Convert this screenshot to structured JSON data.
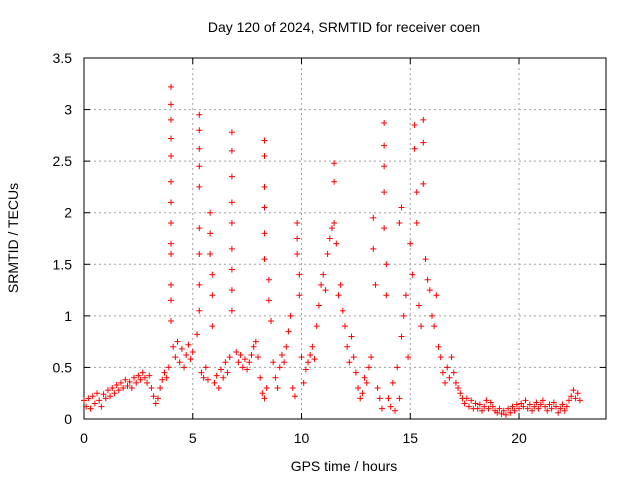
{
  "chart_data": {
    "type": "scatter",
    "title": "Day 120 of 2024, SRMTID for receiver coen",
    "xlabel": "GPS time / hours",
    "ylabel": "SRMTID / TECUs",
    "xlim": [
      0,
      24
    ],
    "ylim": [
      0,
      3.5
    ],
    "xticks": [
      "0",
      "5",
      "10",
      "15",
      "20"
    ],
    "xtick_values": [
      0,
      5,
      10,
      15,
      20
    ],
    "yticks": [
      "0",
      "0.5",
      "1",
      "1.5",
      "2",
      "2.5",
      "3",
      "3.5"
    ],
    "ytick_values": [
      0,
      0.5,
      1,
      1.5,
      2,
      2.5,
      3,
      3.5
    ],
    "grid": true,
    "marker": "plus",
    "series": [
      {
        "name": "SRMTID",
        "color": "#ff0000",
        "points": [
          [
            0.0,
            0.18
          ],
          [
            0.1,
            0.12
          ],
          [
            0.2,
            0.2
          ],
          [
            0.3,
            0.1
          ],
          [
            0.4,
            0.22
          ],
          [
            0.5,
            0.15
          ],
          [
            0.6,
            0.25
          ],
          [
            0.7,
            0.18
          ],
          [
            0.8,
            0.12
          ],
          [
            0.9,
            0.24
          ],
          [
            1.0,
            0.2
          ],
          [
            1.1,
            0.28
          ],
          [
            1.2,
            0.22
          ],
          [
            1.3,
            0.3
          ],
          [
            1.4,
            0.25
          ],
          [
            1.5,
            0.33
          ],
          [
            1.6,
            0.28
          ],
          [
            1.7,
            0.35
          ],
          [
            1.8,
            0.3
          ],
          [
            1.9,
            0.38
          ],
          [
            2.0,
            0.32
          ],
          [
            2.1,
            0.36
          ],
          [
            2.2,
            0.3
          ],
          [
            2.3,
            0.4
          ],
          [
            2.4,
            0.35
          ],
          [
            2.5,
            0.42
          ],
          [
            2.6,
            0.38
          ],
          [
            2.7,
            0.45
          ],
          [
            2.8,
            0.4
          ],
          [
            2.9,
            0.35
          ],
          [
            3.0,
            0.42
          ],
          [
            3.1,
            0.3
          ],
          [
            3.2,
            0.22
          ],
          [
            3.3,
            0.15
          ],
          [
            3.4,
            0.2
          ],
          [
            3.5,
            0.3
          ],
          [
            3.6,
            0.38
          ],
          [
            3.7,
            0.45
          ],
          [
            3.8,
            0.4
          ],
          [
            3.9,
            0.5
          ],
          [
            4.0,
            3.22
          ],
          [
            4.0,
            3.05
          ],
          [
            4.0,
            2.9
          ],
          [
            4.0,
            2.72
          ],
          [
            4.0,
            2.55
          ],
          [
            4.0,
            2.3
          ],
          [
            4.0,
            2.1
          ],
          [
            4.0,
            1.9
          ],
          [
            4.0,
            1.7
          ],
          [
            4.0,
            1.6
          ],
          [
            4.0,
            1.3
          ],
          [
            4.0,
            1.15
          ],
          [
            4.0,
            0.95
          ],
          [
            4.1,
            0.7
          ],
          [
            4.2,
            0.6
          ],
          [
            4.3,
            0.75
          ],
          [
            4.4,
            0.55
          ],
          [
            4.5,
            0.68
          ],
          [
            4.6,
            0.5
          ],
          [
            4.7,
            0.62
          ],
          [
            4.8,
            0.72
          ],
          [
            4.9,
            0.58
          ],
          [
            5.0,
            0.65
          ],
          [
            5.2,
            0.82
          ],
          [
            5.3,
            2.95
          ],
          [
            5.3,
            2.8
          ],
          [
            5.3,
            2.62
          ],
          [
            5.3,
            2.45
          ],
          [
            5.3,
            2.25
          ],
          [
            5.3,
            1.85
          ],
          [
            5.3,
            1.6
          ],
          [
            5.3,
            1.3
          ],
          [
            5.3,
            1.05
          ],
          [
            5.4,
            0.45
          ],
          [
            5.5,
            0.4
          ],
          [
            5.6,
            0.5
          ],
          [
            5.7,
            0.38
          ],
          [
            5.8,
            2.0
          ],
          [
            5.8,
            1.8
          ],
          [
            5.8,
            1.6
          ],
          [
            5.9,
            1.4
          ],
          [
            5.9,
            1.2
          ],
          [
            5.9,
            0.9
          ],
          [
            6.0,
            0.35
          ],
          [
            6.1,
            0.42
          ],
          [
            6.2,
            0.3
          ],
          [
            6.3,
            0.48
          ],
          [
            6.4,
            0.4
          ],
          [
            6.5,
            0.55
          ],
          [
            6.6,
            0.45
          ],
          [
            6.7,
            0.6
          ],
          [
            6.8,
            2.78
          ],
          [
            6.8,
            2.6
          ],
          [
            6.8,
            2.35
          ],
          [
            6.8,
            2.1
          ],
          [
            6.8,
            1.9
          ],
          [
            6.8,
            1.65
          ],
          [
            6.8,
            1.45
          ],
          [
            6.8,
            1.25
          ],
          [
            6.8,
            1.05
          ],
          [
            7.0,
            0.65
          ],
          [
            7.1,
            0.55
          ],
          [
            7.2,
            0.62
          ],
          [
            7.3,
            0.5
          ],
          [
            7.4,
            0.58
          ],
          [
            7.5,
            0.48
          ],
          [
            7.6,
            0.55
          ],
          [
            7.7,
            0.62
          ],
          [
            7.8,
            0.7
          ],
          [
            7.9,
            0.75
          ],
          [
            8.0,
            0.6
          ],
          [
            8.1,
            0.4
          ],
          [
            8.2,
            0.25
          ],
          [
            8.3,
            0.2
          ],
          [
            8.3,
            2.7
          ],
          [
            8.3,
            2.55
          ],
          [
            8.3,
            2.25
          ],
          [
            8.3,
            2.05
          ],
          [
            8.3,
            1.8
          ],
          [
            8.3,
            1.55
          ],
          [
            8.4,
            0.3
          ],
          [
            8.5,
            1.35
          ],
          [
            8.5,
            1.15
          ],
          [
            8.6,
            0.95
          ],
          [
            8.7,
            0.55
          ],
          [
            8.8,
            0.4
          ],
          [
            8.9,
            0.3
          ],
          [
            9.0,
            0.5
          ],
          [
            9.1,
            0.62
          ],
          [
            9.2,
            0.55
          ],
          [
            9.3,
            0.7
          ],
          [
            9.4,
            0.85
          ],
          [
            9.5,
            1.0
          ],
          [
            9.6,
            0.3
          ],
          [
            9.7,
            0.22
          ],
          [
            9.8,
            1.9
          ],
          [
            9.8,
            1.75
          ],
          [
            9.8,
            1.6
          ],
          [
            9.9,
            1.4
          ],
          [
            9.9,
            1.2
          ],
          [
            10.0,
            0.6
          ],
          [
            10.1,
            0.35
          ],
          [
            10.2,
            0.48
          ],
          [
            10.3,
            0.55
          ],
          [
            10.4,
            0.62
          ],
          [
            10.5,
            0.7
          ],
          [
            10.6,
            0.58
          ],
          [
            10.7,
            0.9
          ],
          [
            10.8,
            1.1
          ],
          [
            10.9,
            1.3
          ],
          [
            11.0,
            1.4
          ],
          [
            11.1,
            1.25
          ],
          [
            11.2,
            1.6
          ],
          [
            11.3,
            1.75
          ],
          [
            11.4,
            1.85
          ],
          [
            11.5,
            1.9
          ],
          [
            11.5,
            2.48
          ],
          [
            11.5,
            2.3
          ],
          [
            11.6,
            1.7
          ],
          [
            11.7,
            1.2
          ],
          [
            11.8,
            1.3
          ],
          [
            11.9,
            1.05
          ],
          [
            12.0,
            0.9
          ],
          [
            12.1,
            0.7
          ],
          [
            12.2,
            0.55
          ],
          [
            12.3,
            0.8
          ],
          [
            12.4,
            0.6
          ],
          [
            12.5,
            0.45
          ],
          [
            12.6,
            0.3
          ],
          [
            12.7,
            0.2
          ],
          [
            12.8,
            0.25
          ],
          [
            12.9,
            0.4
          ],
          [
            13.0,
            0.35
          ],
          [
            13.1,
            0.5
          ],
          [
            13.2,
            0.6
          ],
          [
            13.3,
            1.95
          ],
          [
            13.3,
            1.65
          ],
          [
            13.4,
            1.3
          ],
          [
            13.5,
            0.3
          ],
          [
            13.6,
            0.2
          ],
          [
            13.7,
            0.1
          ],
          [
            13.8,
            2.87
          ],
          [
            13.8,
            2.65
          ],
          [
            13.8,
            2.45
          ],
          [
            13.8,
            2.2
          ],
          [
            13.8,
            1.85
          ],
          [
            13.9,
            1.5
          ],
          [
            13.9,
            1.2
          ],
          [
            14.0,
            0.2
          ],
          [
            14.1,
            0.12
          ],
          [
            14.2,
            0.35
          ],
          [
            14.3,
            0.08
          ],
          [
            14.4,
            0.5
          ],
          [
            14.5,
            0.2
          ],
          [
            14.5,
            1.9
          ],
          [
            14.6,
            2.05
          ],
          [
            14.6,
            0.8
          ],
          [
            14.7,
            1.0
          ],
          [
            14.8,
            1.2
          ],
          [
            14.9,
            0.6
          ],
          [
            15.0,
            1.7
          ],
          [
            15.1,
            1.4
          ],
          [
            15.2,
            2.85
          ],
          [
            15.2,
            2.62
          ],
          [
            15.3,
            2.2
          ],
          [
            15.3,
            1.9
          ],
          [
            15.4,
            1.1
          ],
          [
            15.5,
            0.9
          ],
          [
            15.6,
            2.9
          ],
          [
            15.6,
            2.68
          ],
          [
            15.6,
            2.28
          ],
          [
            15.7,
            1.55
          ],
          [
            15.8,
            1.35
          ],
          [
            15.9,
            1.25
          ],
          [
            16.0,
            1.0
          ],
          [
            16.1,
            0.9
          ],
          [
            16.2,
            1.2
          ],
          [
            16.3,
            0.7
          ],
          [
            16.4,
            0.6
          ],
          [
            16.5,
            0.45
          ],
          [
            16.6,
            0.35
          ],
          [
            16.7,
            0.5
          ],
          [
            16.8,
            0.4
          ],
          [
            16.9,
            0.6
          ],
          [
            17.0,
            0.45
          ],
          [
            17.1,
            0.35
          ],
          [
            17.2,
            0.3
          ],
          [
            17.3,
            0.25
          ],
          [
            17.4,
            0.2
          ],
          [
            17.5,
            0.15
          ],
          [
            17.6,
            0.2
          ],
          [
            17.7,
            0.12
          ],
          [
            17.8,
            0.18
          ],
          [
            17.9,
            0.1
          ],
          [
            18.0,
            0.15
          ],
          [
            18.1,
            0.1
          ],
          [
            18.2,
            0.14
          ],
          [
            18.3,
            0.08
          ],
          [
            18.4,
            0.12
          ],
          [
            18.5,
            0.18
          ],
          [
            18.6,
            0.1
          ],
          [
            18.7,
            0.16
          ],
          [
            18.8,
            0.12
          ],
          [
            18.9,
            0.08
          ],
          [
            19.0,
            0.06
          ],
          [
            19.1,
            0.1
          ],
          [
            19.2,
            0.05
          ],
          [
            19.3,
            0.08
          ],
          [
            19.4,
            0.04
          ],
          [
            19.5,
            0.1
          ],
          [
            19.6,
            0.06
          ],
          [
            19.7,
            0.12
          ],
          [
            19.8,
            0.08
          ],
          [
            19.9,
            0.14
          ],
          [
            20.0,
            0.1
          ],
          [
            20.1,
            0.15
          ],
          [
            20.2,
            0.12
          ],
          [
            20.3,
            0.18
          ],
          [
            20.4,
            0.1
          ],
          [
            20.5,
            0.14
          ],
          [
            20.6,
            0.08
          ],
          [
            20.7,
            0.12
          ],
          [
            20.8,
            0.16
          ],
          [
            20.9,
            0.1
          ],
          [
            21.0,
            0.14
          ],
          [
            21.1,
            0.18
          ],
          [
            21.2,
            0.12
          ],
          [
            21.3,
            0.08
          ],
          [
            21.4,
            0.14
          ],
          [
            21.5,
            0.1
          ],
          [
            21.6,
            0.16
          ],
          [
            21.7,
            0.12
          ],
          [
            21.8,
            0.06
          ],
          [
            21.9,
            0.1
          ],
          [
            22.0,
            0.14
          ],
          [
            22.1,
            0.08
          ],
          [
            22.2,
            0.12
          ],
          [
            22.3,
            0.18
          ],
          [
            22.4,
            0.22
          ],
          [
            22.5,
            0.28
          ],
          [
            22.6,
            0.2
          ],
          [
            22.7,
            0.25
          ],
          [
            22.8,
            0.18
          ]
        ]
      }
    ]
  }
}
